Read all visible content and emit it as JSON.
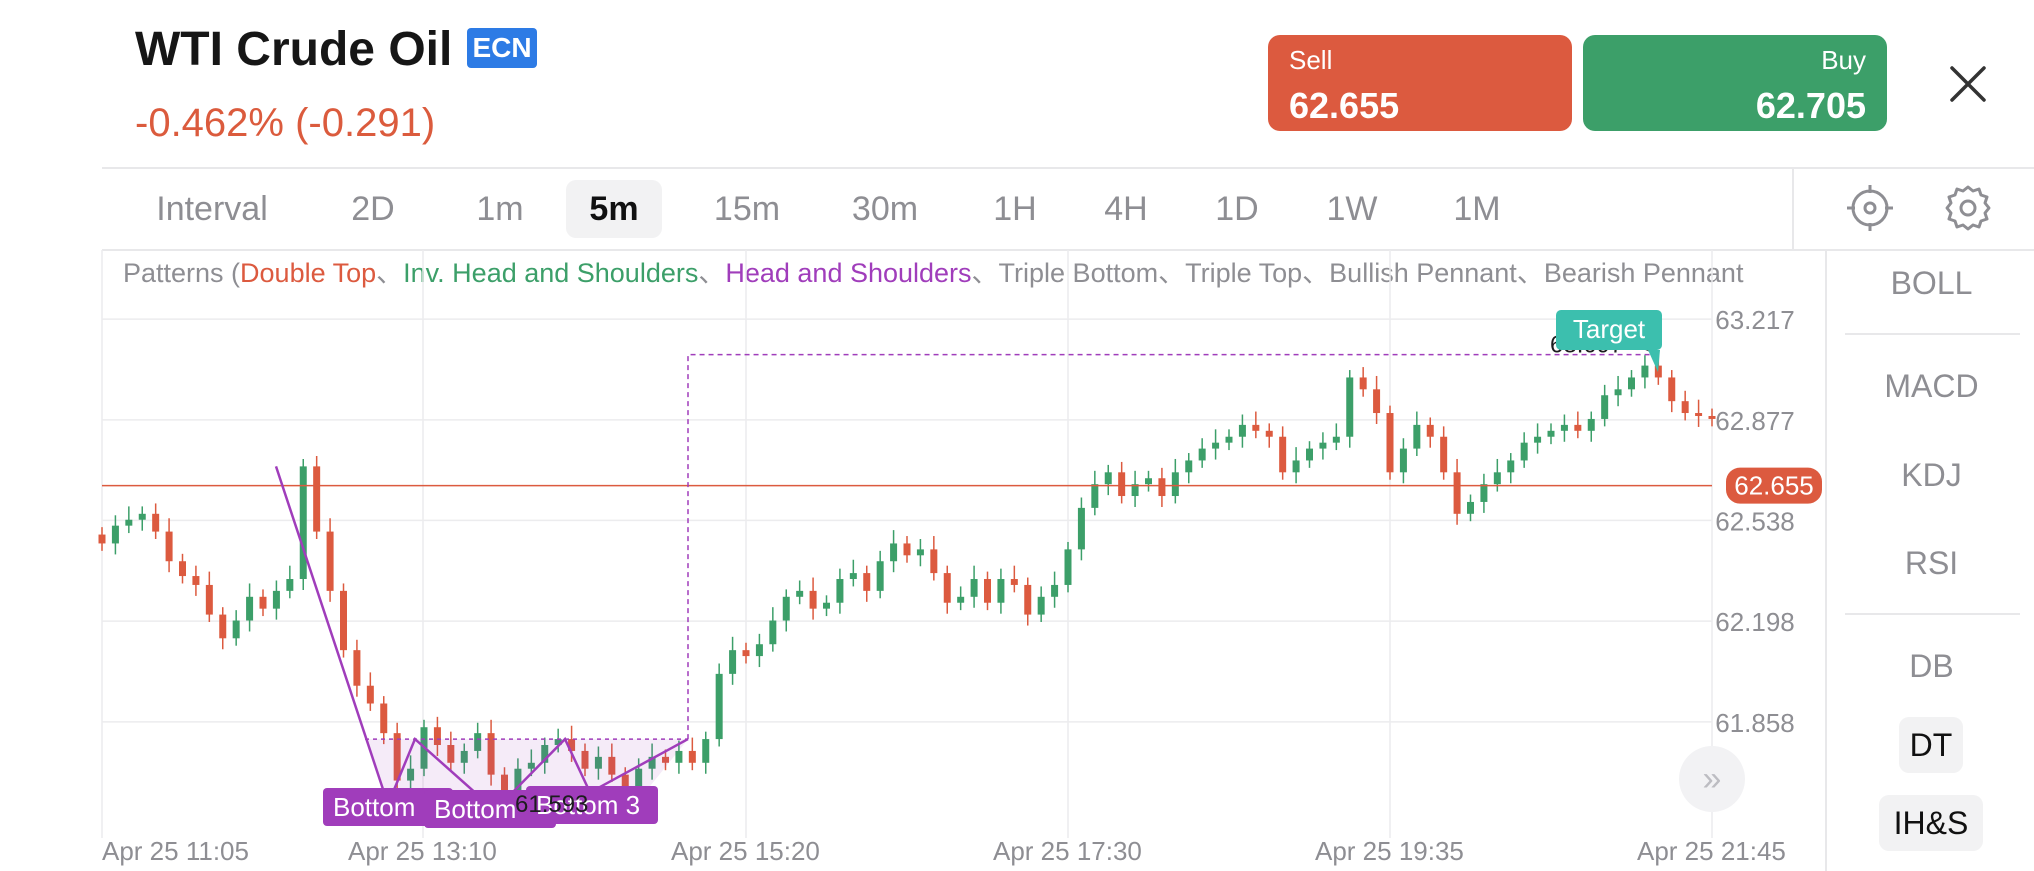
{
  "instrument": {
    "name": "WTI Crude Oil",
    "badge": "ECN",
    "change": "-0.462% (-0.291)"
  },
  "trade": {
    "sell_label": "Sell",
    "sell_price": "62.655",
    "buy_label": "Buy",
    "buy_price": "62.705"
  },
  "close_icon": "close-icon",
  "intervals": {
    "label": "Interval",
    "items": [
      "2D",
      "1m",
      "5m",
      "15m",
      "30m",
      "1H",
      "4H",
      "1D",
      "1W",
      "1M"
    ],
    "active": "5m"
  },
  "tools": [
    "crosshair-icon",
    "gear-icon"
  ],
  "patterns": {
    "prefix": "Patterns (",
    "items": [
      "Double Top",
      "Inv. Head and Shoulders",
      "Head and Shoulders",
      "Triple Bottom",
      "Triple Top",
      "Bullish Pennant",
      "Bearish Pennant"
    ],
    "separator": "、"
  },
  "indicators": {
    "main": [
      "BOLL",
      "MACD",
      "KDJ",
      "RSI"
    ],
    "patterns": [
      "DB",
      "DT",
      "IH&S"
    ]
  },
  "colors": {
    "up": "#3c9f69",
    "down": "#dc5a3f",
    "pattern": "#a03dbb",
    "target": "#3cbfae"
  },
  "chart_data": {
    "type": "candlestick",
    "symbol": "WTI Crude Oil",
    "interval": "5m",
    "y_ticks": [
      "63.217",
      "62.877",
      "62.538",
      "62.198",
      "61.858"
    ],
    "ylim": [
      61.5,
      63.45
    ],
    "x_ticks": [
      "Apr 25 11:05",
      "Apr 25 13:10",
      "Apr 25 15:20",
      "Apr 25 17:30",
      "Apr 25 19:35",
      "Apr 25 21:45"
    ],
    "current_price": "62.655",
    "target_label": "Target",
    "target_value": "63.097",
    "pattern_labels": [
      "Bottom",
      "Bottom",
      "Bottom 3"
    ],
    "pattern_value": "61.593",
    "closes": [
      62.46,
      62.52,
      62.54,
      62.56,
      62.5,
      62.4,
      62.35,
      62.32,
      62.22,
      62.14,
      62.2,
      62.28,
      62.24,
      62.3,
      62.34,
      62.72,
      62.5,
      62.3,
      62.1,
      61.98,
      61.92,
      61.82,
      61.66,
      61.7,
      61.84,
      61.78,
      61.72,
      61.76,
      61.82,
      61.68,
      61.62,
      61.7,
      61.72,
      61.78,
      61.8,
      61.76,
      61.7,
      61.74,
      61.68,
      61.64,
      61.7,
      61.74,
      61.72,
      61.76,
      61.72,
      61.8,
      62.02,
      62.1,
      62.08,
      62.12,
      62.2,
      62.28,
      62.3,
      62.24,
      62.26,
      62.34,
      62.36,
      62.3,
      62.4,
      62.46,
      62.42,
      62.44,
      62.36,
      62.26,
      62.28,
      62.34,
      62.26,
      62.34,
      62.32,
      62.22,
      62.28,
      62.32,
      62.44,
      62.58,
      62.66,
      62.7,
      62.62,
      62.66,
      62.68,
      62.62,
      62.7,
      62.74,
      62.78,
      62.8,
      62.82,
      62.86,
      62.84,
      62.82,
      62.7,
      62.74,
      62.78,
      62.8,
      62.82,
      63.02,
      62.98,
      62.9,
      62.7,
      62.78,
      62.86,
      62.82,
      62.7,
      62.56,
      62.6,
      62.66,
      62.7,
      62.74,
      62.8,
      62.82,
      62.84,
      62.86,
      62.84,
      62.88,
      62.96,
      62.98,
      63.02,
      63.06,
      63.02,
      62.94,
      62.9,
      62.89,
      62.88
    ]
  }
}
